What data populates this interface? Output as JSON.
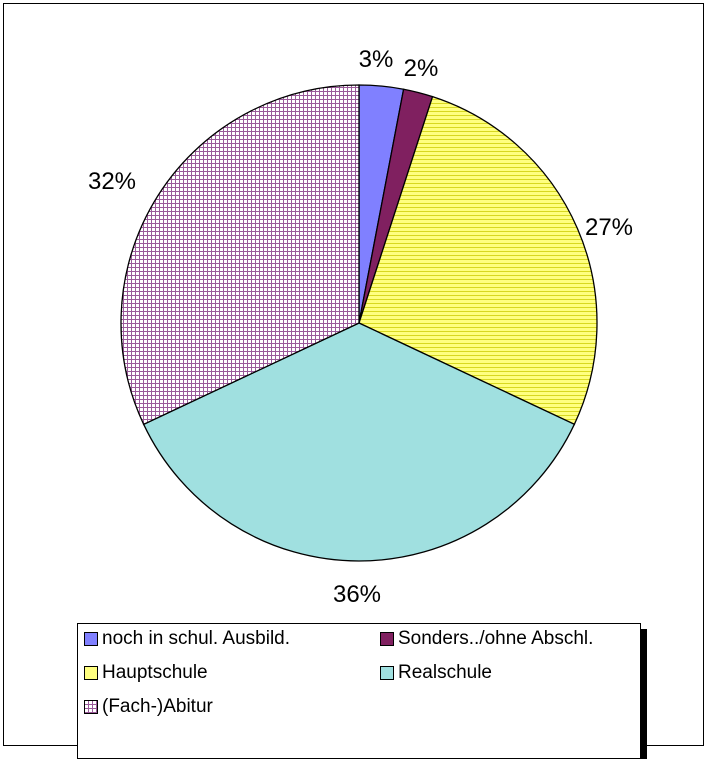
{
  "chart_data": {
    "type": "pie",
    "slices": [
      {
        "label": "noch in schul. Ausbild.",
        "value": 3,
        "display": "3%",
        "color": "#8080ff",
        "pattern": "solid"
      },
      {
        "label": "Sonders../ohne Abschl.",
        "value": 2,
        "display": "2%",
        "color": "#802060",
        "pattern": "solid"
      },
      {
        "label": "Hauptschule",
        "value": 27,
        "display": "27%",
        "color": "#ffff80",
        "pattern": "hlines"
      },
      {
        "label": "Realschule",
        "value": 36,
        "display": "36%",
        "color": "#a0e0e0",
        "pattern": "solid"
      },
      {
        "label": "(Fach-)Abitur",
        "value": 32,
        "display": "32%",
        "color": "#ffffff",
        "pattern": "grid",
        "pattern_color": "#9a5a9a"
      }
    ],
    "start_angle": "12 o'clock",
    "direction": "clockwise",
    "legend_placement": "bottom"
  }
}
